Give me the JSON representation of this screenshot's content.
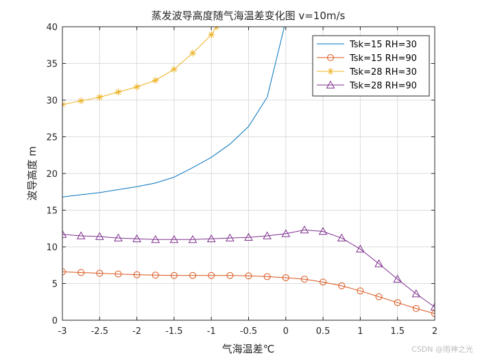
{
  "chart_data": {
    "type": "line",
    "title": "蒸发波导高度随气海温差变化图 v=10m/s",
    "xlabel": "气海温差℃",
    "ylabel": "波导高度 m",
    "xlim": [
      -3,
      2
    ],
    "ylim": [
      0,
      40
    ],
    "xticks": [
      "-3",
      "-2.5",
      "-2",
      "-1.5",
      "-1",
      "-0.5",
      "0",
      "0.5",
      "1",
      "1.5",
      "2"
    ],
    "yticks": [
      "0",
      "5",
      "10",
      "15",
      "20",
      "25",
      "30",
      "35",
      "40"
    ],
    "grid": true,
    "legend_position": "top-right",
    "series": [
      {
        "name": "Tsk=15 RH=30",
        "color": "#0072BD",
        "marker": "none",
        "x": [
          -3,
          -2.75,
          -2.5,
          -2.25,
          -2,
          -1.75,
          -1.5,
          -1.25,
          -1,
          -0.75,
          -0.5,
          -0.25,
          -0.02
        ],
        "y": [
          16.8,
          17.1,
          17.4,
          17.8,
          18.2,
          18.7,
          19.5,
          20.8,
          22.2,
          24.0,
          26.4,
          30.4,
          40
        ]
      },
      {
        "name": "Tsk=15 RH=90",
        "color": "#D95319",
        "marker": "circle",
        "x": [
          -3,
          -2.75,
          -2.5,
          -2.25,
          -2,
          -1.75,
          -1.5,
          -1.25,
          -1,
          -0.75,
          -0.5,
          -0.25,
          0,
          0.25,
          0.5,
          0.75,
          1,
          1.25,
          1.5,
          1.75,
          2
        ],
        "y": [
          6.6,
          6.5,
          6.4,
          6.3,
          6.2,
          6.15,
          6.1,
          6.1,
          6.1,
          6.1,
          6.05,
          5.95,
          5.8,
          5.6,
          5.2,
          4.7,
          4.0,
          3.2,
          2.4,
          1.6,
          0.9
        ]
      },
      {
        "name": "Tsk=28 RH=30",
        "color": "#EDB120",
        "marker": "star",
        "x": [
          -3,
          -2.75,
          -2.5,
          -2.25,
          -2,
          -1.75,
          -1.5,
          -1.25,
          -1,
          -0.93
        ],
        "y": [
          29.4,
          29.9,
          30.4,
          31.1,
          31.8,
          32.7,
          34.2,
          36.4,
          38.9,
          40
        ]
      },
      {
        "name": "Tsk=28 RH=90",
        "color": "#7E2F8E",
        "marker": "triangle",
        "x": [
          -3,
          -2.75,
          -2.5,
          -2.25,
          -2,
          -1.75,
          -1.5,
          -1.25,
          -1,
          -0.75,
          -0.5,
          -0.25,
          0,
          0.25,
          0.5,
          0.75,
          1,
          1.25,
          1.5,
          1.75,
          2
        ],
        "y": [
          11.7,
          11.5,
          11.4,
          11.2,
          11.1,
          11.0,
          11.0,
          11.0,
          11.1,
          11.2,
          11.3,
          11.5,
          11.8,
          12.3,
          12.1,
          11.2,
          9.7,
          7.7,
          5.6,
          3.6,
          1.8
        ]
      }
    ]
  },
  "watermark": "CSDN @雨神之光"
}
